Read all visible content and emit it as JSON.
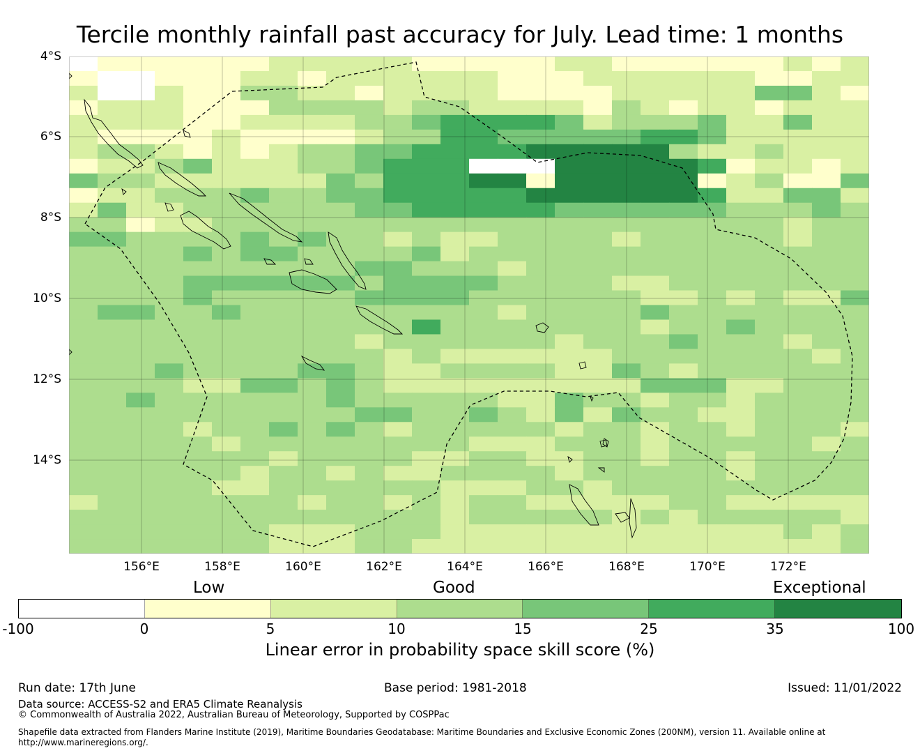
{
  "title": "Tercile monthly rainfall past accuracy for July. Lead time: 1 months",
  "map": {
    "lat_labels": [
      "4°S",
      "6°S",
      "8°S",
      "10°S",
      "12°S",
      "14°S"
    ],
    "lon_labels": [
      "156°E",
      "158°E",
      "160°E",
      "162°E",
      "164°E",
      "166°E",
      "168°E",
      "170°E",
      "172°E"
    ],
    "lat_range": [
      -16.3,
      -4.0
    ],
    "lon_range": [
      154.2,
      174.0
    ],
    "grid_levels": [
      "0111111222221111122111111212",
      "1001112212222221112222221122",
      "2002113322122221111222224421",
      "1222111333323322221321221222",
      "2222112222334555542333422422",
      "2111121111233554444455422222",
      "2332121233445555666663223222",
      "1223422233455500066666512212",
      "4332222224355566166666123114",
      "1223334334455555666666522442",
      "2422333333445555544444433343",
      "3312233333333333333333333233",
      "4433334343323223333233333233",
      "3333434433334233333333333333",
      "3333333333443332333333333333",
      "3333444444344443333223333333",
      "3333433333444433333322323224",
      "3443343333333332333343333333",
      "3333333333335333333323343333",
      "3333333333233333323334333233",
      "3333333333323222222333333323",
      "3334333344322333322432333333",
      "3333224434322222222244422333",
      "3343333334333332243323323333",
      "3333333333443343242433223333",
      "3333233434323333323323323332",
      "3333323333333322233323333323",
      "3333333233332233223323323333",
      "3333332332322333323333323333",
      "3333322333333222332333333333",
      "2333333323323233222223322222",
      "3333333333333233333232333332",
      "3333333222333222222222222323",
      "3333333222332222222222222223"
    ],
    "zone": "Solomon Islands, Vanuatu and surrounding EEZ boundaries"
  },
  "legend": {
    "categories": [
      "Low",
      "Good",
      "Exceptional"
    ],
    "ticks": [
      "-100",
      "0",
      "5",
      "10",
      "15",
      "25",
      "35",
      "100"
    ],
    "colors": [
      "#ffffff",
      "#ffffcc",
      "#d9f0a3",
      "#addd8e",
      "#78c679",
      "#41ab5d",
      "#238443"
    ],
    "label": "Linear error in probability space skill score (%)"
  },
  "footer": {
    "run_date": "Run date: 17th June",
    "base_period": "Base period: 1981-2018",
    "issued": "Issued: 11/01/2022",
    "data_source": "Data source: ACCESS-S2 and ERA5 Climate Reanalysis",
    "copyright": "© Commonwealth of Australia 2022, Australian Bureau of Meteorology, Supported by COSPPac",
    "shapefile_line1": "Shapefile data extracted from Flanders Marine Institute (2019), Maritime Boundaries Geodatabase: Maritime Boundaries and Exclusive Economic Zones (200NM), version 11. Available online at",
    "shapefile_line2": "http://www.marineregions.org/."
  }
}
